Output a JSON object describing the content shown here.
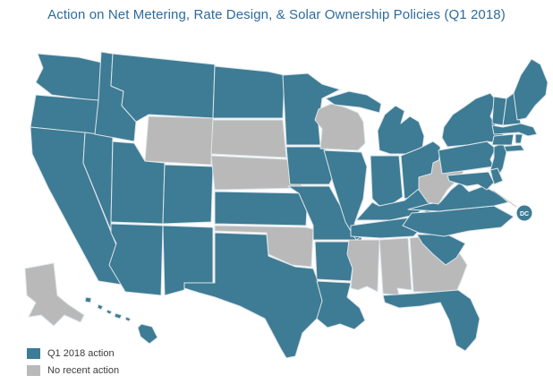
{
  "title": "Action on Net Metering, Rate Design, & Solar Ownership Policies (Q1 2018)",
  "colors": {
    "action": "#3e7b95",
    "no_action": "#b9b9b9"
  },
  "legend": {
    "items": [
      {
        "label": "Q1 2018 action",
        "status": "action"
      },
      {
        "label": "No recent action",
        "status": "no_action"
      }
    ]
  },
  "dc": {
    "label": "DC",
    "name": "District of Columbia",
    "status": "action"
  },
  "map": {
    "states": [
      {
        "id": "WA",
        "name": "Washington",
        "status": "action"
      },
      {
        "id": "OR",
        "name": "Oregon",
        "status": "action"
      },
      {
        "id": "CA",
        "name": "California",
        "status": "action"
      },
      {
        "id": "NV",
        "name": "Nevada",
        "status": "action"
      },
      {
        "id": "ID",
        "name": "Idaho",
        "status": "action"
      },
      {
        "id": "MT",
        "name": "Montana",
        "status": "action"
      },
      {
        "id": "WY",
        "name": "Wyoming",
        "status": "no_action"
      },
      {
        "id": "UT",
        "name": "Utah",
        "status": "action"
      },
      {
        "id": "CO",
        "name": "Colorado",
        "status": "action"
      },
      {
        "id": "AZ",
        "name": "Arizona",
        "status": "action"
      },
      {
        "id": "NM",
        "name": "New Mexico",
        "status": "action"
      },
      {
        "id": "ND",
        "name": "North Dakota",
        "status": "action"
      },
      {
        "id": "SD",
        "name": "South Dakota",
        "status": "no_action"
      },
      {
        "id": "NE",
        "name": "Nebraska",
        "status": "no_action"
      },
      {
        "id": "KS",
        "name": "Kansas",
        "status": "action"
      },
      {
        "id": "OK",
        "name": "Oklahoma",
        "status": "no_action"
      },
      {
        "id": "TX",
        "name": "Texas",
        "status": "action"
      },
      {
        "id": "MN",
        "name": "Minnesota",
        "status": "action"
      },
      {
        "id": "IA",
        "name": "Iowa",
        "status": "action"
      },
      {
        "id": "MO",
        "name": "Missouri",
        "status": "action"
      },
      {
        "id": "AR",
        "name": "Arkansas",
        "status": "action"
      },
      {
        "id": "LA",
        "name": "Louisiana",
        "status": "action"
      },
      {
        "id": "WI",
        "name": "Wisconsin",
        "status": "no_action"
      },
      {
        "id": "IL",
        "name": "Illinois",
        "status": "action"
      },
      {
        "id": "MI",
        "name": "Michigan",
        "status": "action"
      },
      {
        "id": "IN",
        "name": "Indiana",
        "status": "action"
      },
      {
        "id": "OH",
        "name": "Ohio",
        "status": "action"
      },
      {
        "id": "KY",
        "name": "Kentucky",
        "status": "action"
      },
      {
        "id": "TN",
        "name": "Tennessee",
        "status": "action"
      },
      {
        "id": "MS",
        "name": "Mississippi",
        "status": "no_action"
      },
      {
        "id": "AL",
        "name": "Alabama",
        "status": "no_action"
      },
      {
        "id": "GA",
        "name": "Georgia",
        "status": "no_action"
      },
      {
        "id": "FL",
        "name": "Florida",
        "status": "action"
      },
      {
        "id": "SC",
        "name": "South Carolina",
        "status": "action"
      },
      {
        "id": "NC",
        "name": "North Carolina",
        "status": "action"
      },
      {
        "id": "VA",
        "name": "Virginia",
        "status": "action"
      },
      {
        "id": "WV",
        "name": "West Virginia",
        "status": "no_action"
      },
      {
        "id": "PA",
        "name": "Pennsylvania",
        "status": "action"
      },
      {
        "id": "NY",
        "name": "New York",
        "status": "action"
      },
      {
        "id": "NJ",
        "name": "New Jersey",
        "status": "action"
      },
      {
        "id": "DE",
        "name": "Delaware",
        "status": "action"
      },
      {
        "id": "MD",
        "name": "Maryland",
        "status": "action"
      },
      {
        "id": "VT",
        "name": "Vermont",
        "status": "action"
      },
      {
        "id": "NH",
        "name": "New Hampshire",
        "status": "action"
      },
      {
        "id": "ME",
        "name": "Maine",
        "status": "action"
      },
      {
        "id": "MA",
        "name": "Massachusetts",
        "status": "action"
      },
      {
        "id": "CT",
        "name": "Connecticut",
        "status": "action"
      },
      {
        "id": "RI",
        "name": "Rhode Island",
        "status": "action"
      },
      {
        "id": "AK",
        "name": "Alaska",
        "status": "no_action"
      },
      {
        "id": "HI",
        "name": "Hawaii",
        "status": "action"
      }
    ]
  }
}
